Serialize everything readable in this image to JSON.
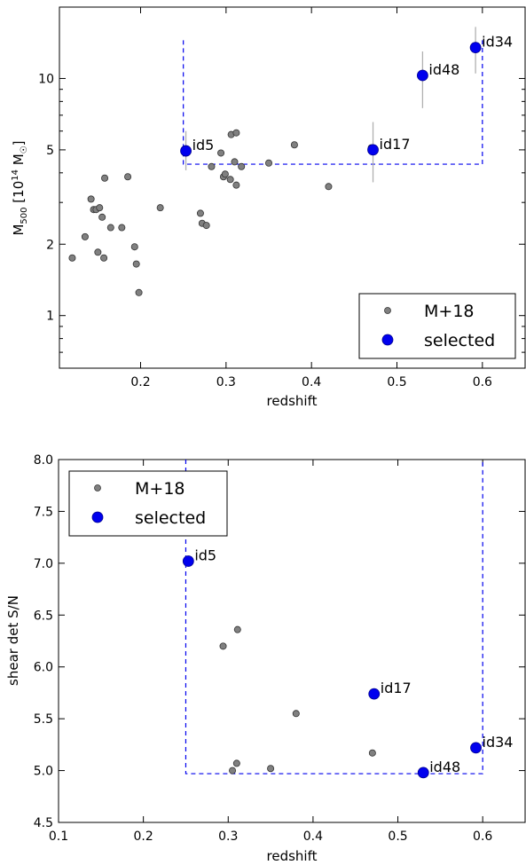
{
  "chart_data": [
    {
      "type": "scatter",
      "xlabel": "redshift",
      "ylabel_main": "M",
      "ylabel_sub": "500",
      "ylabel_rest": " [10",
      "ylabel_exp": "14",
      "ylabel_unit": " M",
      "ylabel_sun": "☉",
      "ylabel_close": "]",
      "xlim": [
        0.105,
        0.65
      ],
      "ylim": [
        0.6,
        20
      ],
      "yscale": "log",
      "xticks": [
        0.2,
        0.3,
        0.4,
        0.5,
        0.6
      ],
      "xtick_labels": [
        "0.2",
        "0.3",
        "0.4",
        "0.5",
        "0.6"
      ],
      "yticks": [
        1,
        2,
        5,
        10
      ],
      "ytick_labels": [
        "1",
        "2",
        "5",
        "10"
      ],
      "legend_position": "lower-right",
      "legend": [
        "M+18",
        "selected"
      ],
      "series": [
        {
          "name": "M+18",
          "color": "#808080",
          "points": [
            [
              0.12,
              1.75
            ],
            [
              0.135,
              2.15
            ],
            [
              0.142,
              3.1
            ],
            [
              0.145,
              2.8
            ],
            [
              0.148,
              2.8
            ],
            [
              0.15,
              1.85
            ],
            [
              0.152,
              2.85
            ],
            [
              0.155,
              2.6
            ],
            [
              0.157,
              1.75
            ],
            [
              0.158,
              3.8
            ],
            [
              0.165,
              2.35
            ],
            [
              0.178,
              2.35
            ],
            [
              0.185,
              3.85
            ],
            [
              0.193,
              1.95
            ],
            [
              0.195,
              1.65
            ],
            [
              0.198,
              1.25
            ],
            [
              0.223,
              2.85
            ],
            [
              0.27,
              2.7
            ],
            [
              0.272,
              2.45
            ],
            [
              0.277,
              2.4
            ],
            [
              0.283,
              4.25
            ],
            [
              0.294,
              4.85
            ],
            [
              0.297,
              3.85
            ],
            [
              0.299,
              3.95
            ],
            [
              0.305,
              3.75
            ],
            [
              0.306,
              5.8
            ],
            [
              0.31,
              4.45
            ],
            [
              0.312,
              5.9
            ],
            [
              0.312,
              3.55
            ],
            [
              0.318,
              4.25
            ],
            [
              0.35,
              4.4
            ],
            [
              0.38,
              5.25
            ],
            [
              0.42,
              3.5
            ],
            [
              0.47,
              5.1
            ]
          ]
        },
        {
          "name": "selected",
          "color": "#0000ee",
          "points": [
            {
              "label": "id5",
              "x": 0.253,
              "y": 4.95,
              "err": [
                4.1,
                6.0
              ]
            },
            {
              "label": "id17",
              "x": 0.472,
              "y": 5.0,
              "err": [
                3.65,
                6.55
              ]
            },
            {
              "label": "id48",
              "x": 0.53,
              "y": 10.3,
              "err": [
                7.5,
                13.0
              ]
            },
            {
              "label": "id34",
              "x": 0.592,
              "y": 13.5,
              "err": [
                10.5,
                16.5
              ]
            }
          ]
        }
      ],
      "selection_box": {
        "x0": 0.25,
        "x1": 0.6,
        "y_low": 4.35,
        "y_top": 14.5
      }
    },
    {
      "type": "scatter",
      "xlabel": "redshift",
      "ylabel": "shear det S/N",
      "xlim": [
        0.1,
        0.65
      ],
      "ylim": [
        4.5,
        8.0
      ],
      "xticks": [
        0.1,
        0.2,
        0.3,
        0.4,
        0.5,
        0.6
      ],
      "xtick_labels": [
        "0.1",
        "0.2",
        "0.3",
        "0.4",
        "0.5",
        "0.6"
      ],
      "yticks": [
        4.5,
        5.0,
        5.5,
        6.0,
        6.5,
        7.0,
        7.5,
        8.0
      ],
      "ytick_labels": [
        "4.5",
        "5.0",
        "5.5",
        "6.0",
        "6.5",
        "7.0",
        "7.5",
        "8.0"
      ],
      "legend_position": "top-left",
      "legend": [
        "M+18",
        "selected"
      ],
      "series": [
        {
          "name": "M+18",
          "color": "#808080",
          "points": [
            [
              0.294,
              6.2
            ],
            [
              0.311,
              6.36
            ],
            [
              0.305,
              5.0
            ],
            [
              0.31,
              5.07
            ],
            [
              0.35,
              5.02
            ],
            [
              0.38,
              5.55
            ],
            [
              0.47,
              5.17
            ]
          ]
        },
        {
          "name": "selected",
          "color": "#0000ee",
          "points": [
            {
              "label": "id5",
              "x": 0.253,
              "y": 7.02
            },
            {
              "label": "id17",
              "x": 0.472,
              "y": 5.74
            },
            {
              "label": "id48",
              "x": 0.53,
              "y": 4.98
            },
            {
              "label": "id34",
              "x": 0.592,
              "y": 5.22
            }
          ]
        }
      ],
      "selection_box": {
        "x0": 0.25,
        "x1": 0.6,
        "y_low": 4.97
      }
    }
  ]
}
